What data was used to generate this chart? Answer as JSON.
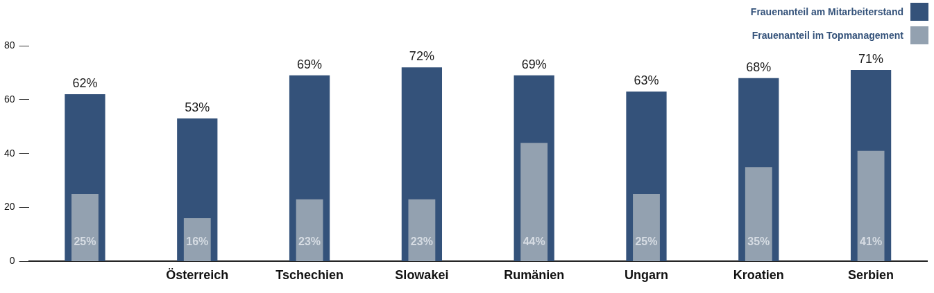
{
  "chart_data": {
    "type": "bar",
    "categories": [
      null,
      "Österreich",
      "Tschechien",
      "Slowakei",
      "Rumänien",
      "Ungarn",
      "Kroatien",
      "Serbien"
    ],
    "series": [
      {
        "name": "Frauenanteil am Mitarbeiterstand",
        "color": "#34527a",
        "values": [
          62,
          53,
          69,
          72,
          69,
          63,
          68,
          71
        ],
        "value_labels": [
          "62%",
          "53%",
          "69%",
          "72%",
          "69%",
          "63%",
          "68%",
          "71%"
        ]
      },
      {
        "name": "Frauenanteil im Topmanagement",
        "color": "#93a1b0",
        "values": [
          25,
          16,
          23,
          23,
          44,
          25,
          35,
          41
        ],
        "value_labels": [
          "25%",
          "16%",
          "23%",
          "23%",
          "44%",
          "25%",
          "35%",
          "41%"
        ]
      }
    ],
    "ylim": [
      0,
      80
    ],
    "yticks": [
      0,
      20,
      40,
      60,
      80
    ],
    "grid": false,
    "legend": "top right"
  }
}
